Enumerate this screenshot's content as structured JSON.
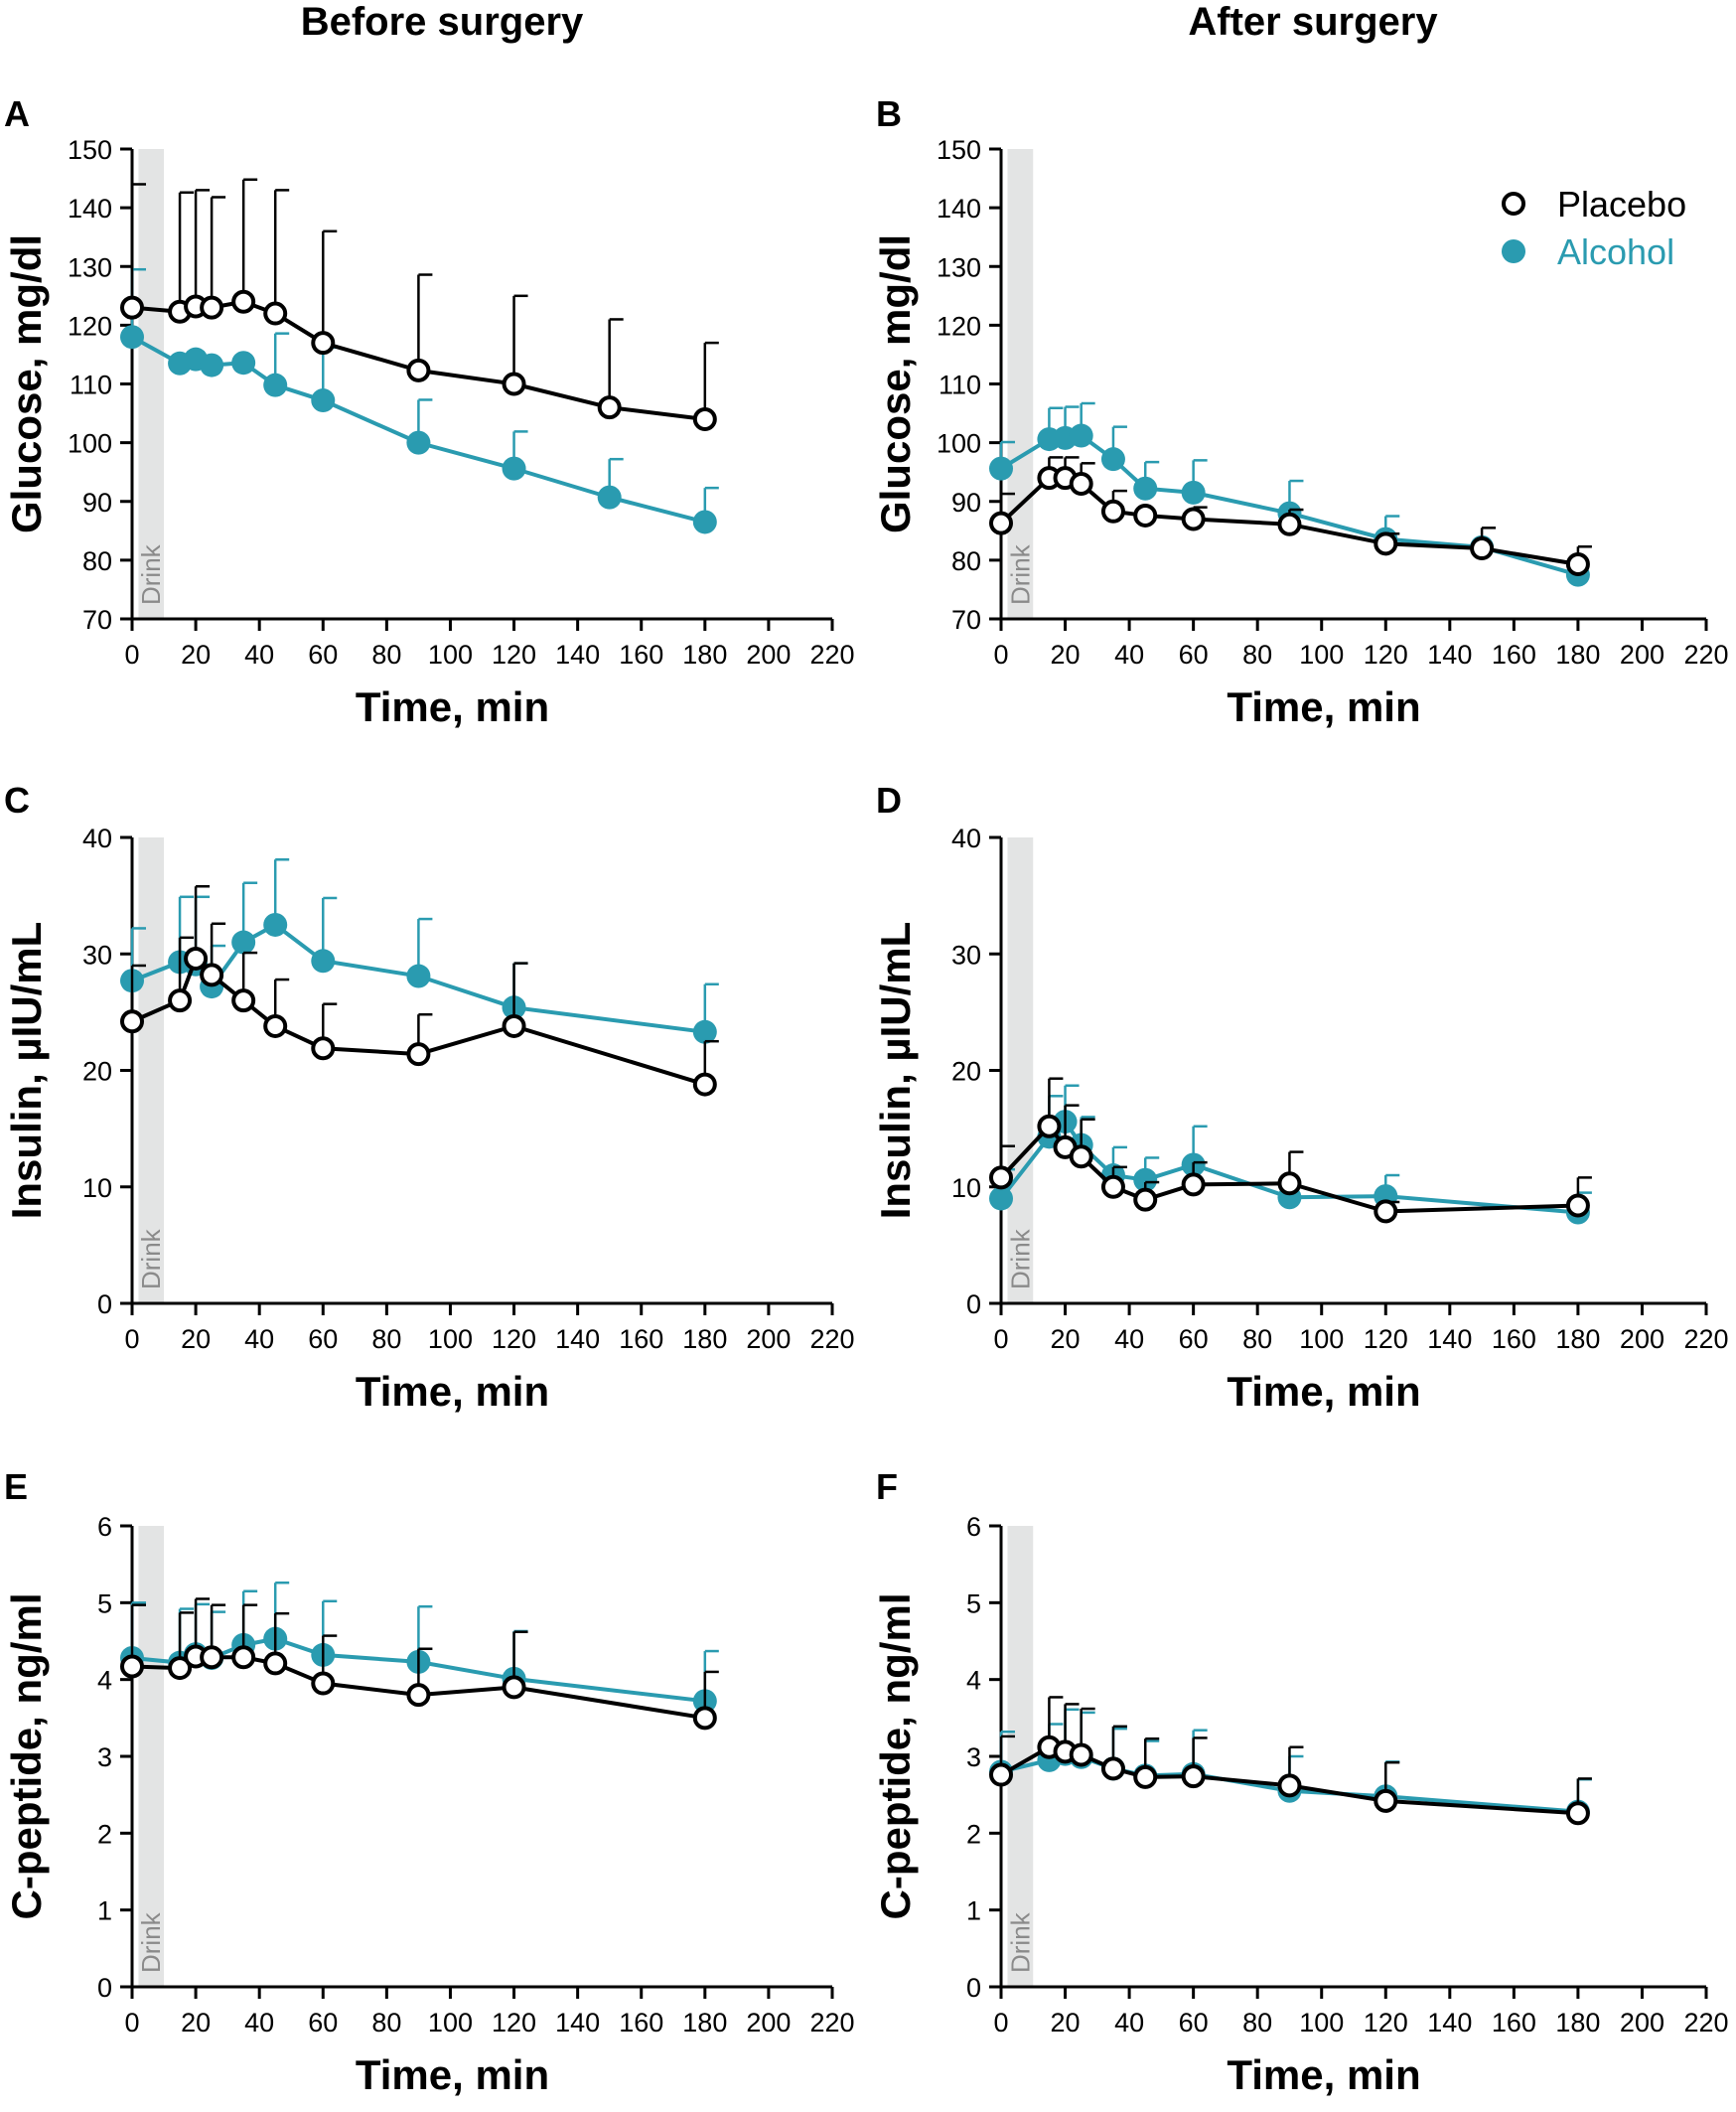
{
  "figure": {
    "col_titles": [
      "Before surgery",
      "After surgery"
    ],
    "legend": {
      "placebo": "Placebo",
      "alcohol": "Alcohol"
    },
    "drink_label": "Drink",
    "colors": {
      "placebo": "#000000",
      "alcohol": "#2a9bb0",
      "drink_band": "#e3e4e4"
    }
  },
  "chart_data": [
    {
      "panel": "A",
      "type": "line",
      "title": "Before surgery",
      "xlabel": "Time, min",
      "ylabel": "Glucose, mg/dl",
      "xlim": [
        0,
        220
      ],
      "ylim": [
        70,
        150
      ],
      "xticks": [
        0,
        20,
        40,
        60,
        80,
        100,
        120,
        140,
        160,
        180,
        200,
        220
      ],
      "yticks": [
        70,
        80,
        90,
        100,
        110,
        120,
        130,
        140,
        150
      ],
      "x": [
        0,
        15,
        20,
        25,
        35,
        45,
        60,
        90,
        120,
        150,
        180
      ],
      "series": [
        {
          "name": "Placebo",
          "values": [
            123,
            122.3,
            123.2,
            123,
            124,
            122,
            117,
            112.3,
            110,
            106,
            104
          ],
          "errors": [
            21,
            20.3,
            19.8,
            18.8,
            20.8,
            21,
            19,
            16.3,
            15,
            15,
            13
          ]
        },
        {
          "name": "Alcohol",
          "values": [
            118,
            113.5,
            114.2,
            113.2,
            113.6,
            109.8,
            107.2,
            100,
            95.6,
            90.7,
            86.5
          ],
          "errors": [
            11.5,
            0,
            0,
            0,
            0,
            8.8,
            9,
            7.3,
            6.3,
            6.5,
            5.8
          ]
        }
      ]
    },
    {
      "panel": "B",
      "type": "line",
      "title": "After surgery",
      "xlabel": "Time, min",
      "ylabel": "Glucose, mg/dl",
      "xlim": [
        0,
        220
      ],
      "ylim": [
        70,
        150
      ],
      "xticks": [
        0,
        20,
        40,
        60,
        80,
        100,
        120,
        140,
        160,
        180,
        200,
        220
      ],
      "yticks": [
        70,
        80,
        90,
        100,
        110,
        120,
        130,
        140,
        150
      ],
      "x": [
        0,
        15,
        20,
        25,
        35,
        45,
        60,
        90,
        120,
        150,
        180
      ],
      "series": [
        {
          "name": "Placebo",
          "values": [
            86.3,
            94,
            94,
            93,
            88.3,
            87.6,
            87,
            86.1,
            82.8,
            82,
            79.3
          ],
          "errors": [
            5,
            3.5,
            3.5,
            3.5,
            3.5,
            0,
            2,
            2.5,
            1.7,
            3.5,
            3
          ]
        },
        {
          "name": "Alcohol",
          "values": [
            95.6,
            100.6,
            100.8,
            101.2,
            97.2,
            92.2,
            91.5,
            88,
            83.6,
            82.2,
            77.5
          ],
          "errors": [
            4.5,
            5.3,
            5.3,
            5.5,
            5.5,
            4.5,
            5.5,
            5.5,
            3.9,
            0,
            0
          ]
        }
      ]
    },
    {
      "panel": "C",
      "type": "line",
      "title": "Before surgery",
      "xlabel": "Time, min",
      "ylabel": "Insulin, µIU/mL",
      "xlim": [
        0,
        220
      ],
      "ylim": [
        0,
        40
      ],
      "xticks": [
        0,
        20,
        40,
        60,
        80,
        100,
        120,
        140,
        160,
        180,
        200,
        220
      ],
      "yticks": [
        0,
        10,
        20,
        30,
        40
      ],
      "x": [
        0,
        15,
        20,
        25,
        35,
        45,
        60,
        90,
        120,
        180
      ],
      "series": [
        {
          "name": "Placebo",
          "values": [
            24.2,
            26,
            29.6,
            28.2,
            26,
            23.8,
            21.9,
            21.4,
            23.8,
            18.8
          ],
          "errors": [
            4.8,
            5.4,
            6.2,
            4.4,
            4.1,
            4,
            3.8,
            3.4,
            5.4,
            3.7
          ]
        },
        {
          "name": "Alcohol",
          "values": [
            27.7,
            29.3,
            29.1,
            27.2,
            31,
            32.5,
            29.4,
            28.1,
            25.4,
            23.3
          ],
          "errors": [
            4.5,
            5.6,
            5.8,
            3.5,
            5.1,
            5.6,
            5.4,
            4.9,
            3.8,
            4.1
          ]
        }
      ]
    },
    {
      "panel": "D",
      "type": "line",
      "title": "After surgery",
      "xlabel": "Time, min",
      "ylabel": "Insulin, µIU/mL",
      "xlim": [
        0,
        220
      ],
      "ylim": [
        0,
        40
      ],
      "xticks": [
        0,
        20,
        40,
        60,
        80,
        100,
        120,
        140,
        160,
        180,
        200,
        220
      ],
      "yticks": [
        0,
        10,
        20,
        30,
        40
      ],
      "x": [
        0,
        15,
        20,
        25,
        35,
        45,
        60,
        90,
        120,
        180
      ],
      "series": [
        {
          "name": "Placebo",
          "values": [
            10.8,
            15.2,
            13.4,
            12.6,
            10,
            8.9,
            10.2,
            10.3,
            7.9,
            8.4
          ],
          "errors": [
            2.7,
            4.1,
            3.6,
            3.2,
            1.7,
            1.5,
            1.9,
            2.7,
            0.8,
            2.4
          ]
        },
        {
          "name": "Alcohol",
          "values": [
            9,
            14.3,
            15.6,
            13.6,
            11,
            10.6,
            11.9,
            9.1,
            9.2,
            7.8
          ],
          "errors": [
            2.5,
            3.5,
            3.1,
            2.4,
            2.4,
            1.9,
            3.3,
            0,
            1.8,
            1.7
          ]
        }
      ]
    },
    {
      "panel": "E",
      "type": "line",
      "title": "Before surgery",
      "xlabel": "Time, min",
      "ylabel": "C-peptide, ng/ml",
      "xlim": [
        0,
        220
      ],
      "ylim": [
        0,
        6
      ],
      "xticks": [
        0,
        20,
        40,
        60,
        80,
        100,
        120,
        140,
        160,
        180,
        200,
        220
      ],
      "yticks": [
        0,
        1,
        2,
        3,
        4,
        5,
        6
      ],
      "x": [
        0,
        15,
        20,
        25,
        35,
        45,
        60,
        90,
        120,
        180
      ],
      "series": [
        {
          "name": "Placebo",
          "values": [
            4.17,
            4.15,
            4.3,
            4.29,
            4.29,
            4.21,
            3.95,
            3.8,
            3.9,
            3.5
          ],
          "errors": [
            0.8,
            0.72,
            0.75,
            0.68,
            0.68,
            0.65,
            0.62,
            0.6,
            0.72,
            0.6
          ]
        },
        {
          "name": "Alcohol",
          "values": [
            4.28,
            4.22,
            4.33,
            4.28,
            4.45,
            4.53,
            4.32,
            4.23,
            4.01,
            3.72
          ],
          "errors": [
            0.72,
            0.7,
            0.65,
            0.6,
            0.7,
            0.73,
            0.7,
            0.72,
            0.62,
            0.65
          ]
        }
      ]
    },
    {
      "panel": "F",
      "type": "line",
      "title": "After surgery",
      "xlabel": "Time, min",
      "ylabel": "C-peptide, ng/ml",
      "xlim": [
        0,
        220
      ],
      "ylim": [
        0,
        6
      ],
      "xticks": [
        0,
        20,
        40,
        60,
        80,
        100,
        120,
        140,
        160,
        180,
        200,
        220
      ],
      "yticks": [
        0,
        1,
        2,
        3,
        4,
        5,
        6
      ],
      "x": [
        0,
        15,
        20,
        25,
        35,
        45,
        60,
        90,
        120,
        180
      ],
      "series": [
        {
          "name": "Placebo",
          "values": [
            2.76,
            3.12,
            3.06,
            3.02,
            2.84,
            2.73,
            2.74,
            2.62,
            2.42,
            2.26
          ],
          "errors": [
            0.5,
            0.65,
            0.62,
            0.6,
            0.55,
            0.5,
            0.5,
            0.5,
            0.5,
            0.45
          ]
        },
        {
          "name": "Alcohol",
          "values": [
            2.8,
            2.95,
            3.03,
            2.99,
            2.84,
            2.75,
            2.77,
            2.55,
            2.48,
            2.28
          ],
          "errors": [
            0.52,
            0.47,
            0.58,
            0.58,
            0.52,
            0.45,
            0.57,
            0.45,
            0.45,
            0.42
          ]
        }
      ]
    }
  ]
}
